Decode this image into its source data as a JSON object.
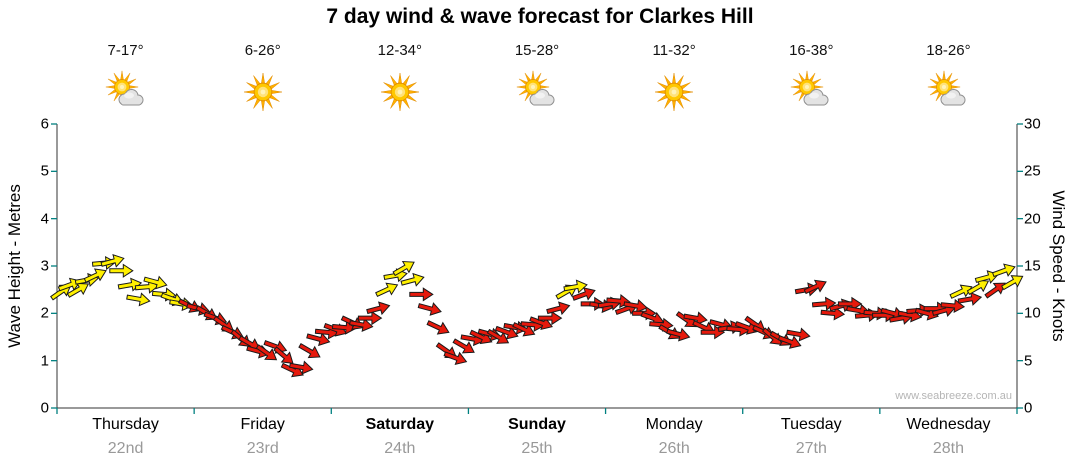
{
  "title": "7 day wind & wave forecast for Clarkes Hill",
  "watermark": "www.seabreeze.com.au",
  "axes": {
    "left_label": "Wave Height - Metres",
    "right_label": "Wind Speed - Knots",
    "left_ticks": [
      0,
      1,
      2,
      3,
      4,
      5,
      6
    ],
    "right_ticks": [
      0,
      5,
      10,
      15,
      20,
      25,
      30
    ]
  },
  "days": [
    {
      "name": "Thursday",
      "date": "22nd",
      "temp": "7-17°",
      "icon": "partly-cloudy",
      "bold": false
    },
    {
      "name": "Friday",
      "date": "23rd",
      "temp": "6-26°",
      "icon": "sunny",
      "bold": false
    },
    {
      "name": "Saturday",
      "date": "24th",
      "temp": "12-34°",
      "icon": "sunny",
      "bold": true
    },
    {
      "name": "Sunday",
      "date": "25th",
      "temp": "15-28°",
      "icon": "partly-cloudy",
      "bold": true
    },
    {
      "name": "Monday",
      "date": "26th",
      "temp": "11-32°",
      "icon": "sunny",
      "bold": false
    },
    {
      "name": "Tuesday",
      "date": "27th",
      "temp": "16-38°",
      "icon": "partly-cloudy",
      "bold": false
    },
    {
      "name": "Wednesday",
      "date": "28th",
      "temp": "18-26°",
      "icon": "partly-cloudy",
      "bold": false
    }
  ],
  "chart_data": {
    "type": "scatter",
    "marker": "wind-arrow",
    "title": "7 day wind & wave forecast for Clarkes Hill",
    "categories": [
      "Thursday",
      "Friday",
      "Saturday",
      "Sunday",
      "Monday",
      "Tuesday",
      "Wednesday"
    ],
    "y_left": {
      "label": "Wave Height - Metres",
      "range": [
        0,
        6
      ],
      "ticks": [
        0,
        1,
        2,
        3,
        4,
        5,
        6
      ]
    },
    "y_right": {
      "label": "Wind Speed - Knots",
      "range": [
        0,
        30
      ],
      "ticks": [
        0,
        5,
        10,
        15,
        20,
        25,
        30
      ]
    },
    "note": "Arrow band reads on both axes; wave metres = knots / 5. colors string: y=yellow arrow, r=red arrow; rot = arrow rotation degrees from pointing right.",
    "samples_per_day": 16,
    "arrow_colors": {
      "y": "#FFF000",
      "r": "#E6190C"
    },
    "series": [
      {
        "name": "Thursday",
        "knots": [
          12.3,
          13,
          12.5,
          13.5,
          14,
          15.3,
          15.5,
          14.5,
          13,
          11.5,
          12.8,
          13.3,
          12,
          11.5,
          11,
          10.8
        ],
        "rot": [
          -35,
          -20,
          -30,
          -10,
          -25,
          -5,
          -15,
          0,
          -10,
          10,
          -5,
          15,
          5,
          20,
          10,
          25
        ],
        "colors": "yyyyyyyyyyyyyyyr"
      },
      {
        "name": "Friday",
        "knots": [
          10.5,
          10,
          9.5,
          8.8,
          8,
          7.3,
          6.8,
          6,
          5.8,
          6.5,
          5.5,
          4,
          4.3,
          6,
          7.3,
          8
        ],
        "rot": [
          15,
          30,
          20,
          35,
          25,
          40,
          30,
          15,
          35,
          20,
          40,
          25,
          10,
          30,
          15,
          5
        ],
        "colors": "rrrrrrrrrrrrrrrr"
      },
      {
        "name": "Saturday",
        "knots": [
          8.3,
          8.5,
          9,
          8.8,
          9.5,
          10.5,
          12.5,
          14,
          14.8,
          13.5,
          12,
          10.5,
          8.5,
          6,
          5.3,
          6.5
        ],
        "rot": [
          20,
          5,
          25,
          10,
          0,
          -15,
          -25,
          -10,
          -30,
          -15,
          0,
          15,
          25,
          35,
          20,
          30
        ],
        "colors": "rrrrrryyyyrrrrrr"
      },
      {
        "name": "Sunday",
        "knots": [
          7.3,
          7.5,
          7.8,
          7.5,
          8,
          8.5,
          8.3,
          8.8,
          9,
          9.5,
          10.5,
          12.3,
          12.8,
          12,
          11,
          10.8
        ],
        "rot": [
          10,
          25,
          15,
          30,
          20,
          10,
          25,
          5,
          20,
          0,
          -15,
          -30,
          -10,
          -20,
          0,
          10
        ],
        "colors": "rrrrrrrrrrryyrrr"
      },
      {
        "name": "Monday",
        "knots": [
          11,
          11.3,
          10.5,
          10.8,
          10,
          9.5,
          8.8,
          8,
          7.8,
          9.3,
          9.5,
          8.5,
          8,
          8.8,
          8.5,
          8.3
        ],
        "rot": [
          -10,
          5,
          -20,
          10,
          0,
          20,
          5,
          30,
          15,
          35,
          10,
          25,
          0,
          15,
          -10,
          5
        ],
        "colors": "rrrrrrrrrrrrrrrr"
      },
      {
        "name": "Tuesday",
        "knots": [
          8.5,
          8.8,
          8,
          7.5,
          7.3,
          7,
          7.8,
          12.5,
          12.8,
          11,
          10,
          10.8,
          11,
          10.3,
          9.8,
          10
        ],
        "rot": [
          20,
          35,
          25,
          40,
          30,
          20,
          10,
          -10,
          -25,
          -5,
          5,
          -15,
          0,
          10,
          -5,
          5
        ],
        "colors": "rrrrrrrrrrrrrrrr"
      },
      {
        "name": "Wednesday",
        "knots": [
          9.8,
          10,
          9.5,
          9.8,
          10.3,
          10,
          10.5,
          10.3,
          10.8,
          12.3,
          11.5,
          12.8,
          13.8,
          12.5,
          14.5,
          13.3
        ],
        "rot": [
          0,
          15,
          -10,
          10,
          -5,
          15,
          0,
          -15,
          5,
          -25,
          -10,
          -30,
          -15,
          -35,
          -20,
          -30
        ],
        "colors": "rrrrrrrrryryyryy"
      }
    ]
  }
}
